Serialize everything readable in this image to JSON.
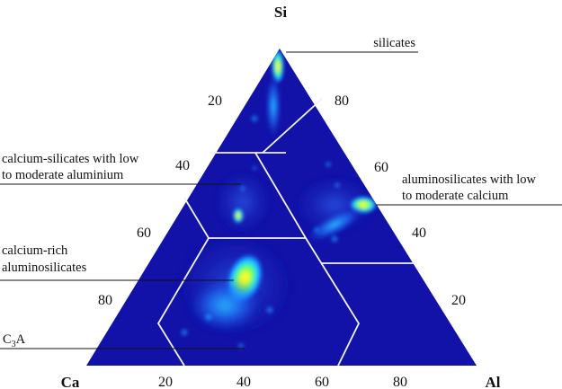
{
  "vertices": {
    "top": "Si",
    "bottom_left": "Ca",
    "bottom_right": "Al"
  },
  "ticks": {
    "left_edge": [
      "20",
      "40",
      "60",
      "80"
    ],
    "right_edge": [
      "80",
      "60",
      "40",
      "20"
    ],
    "bottom_edge": [
      "20",
      "40",
      "60",
      "80"
    ]
  },
  "regions": {
    "silicates": "silicates",
    "calcium_silicates_line1": "calcium-silicates with low",
    "calcium_silicates_line2": "to moderate aluminium",
    "aluminosilicates_line1": "aluminosilicates with low",
    "aluminosilicates_line2": "to moderate calcium",
    "calcium_rich_line1": "calcium-rich",
    "calcium_rich_line2": "aluminosilicates",
    "c3a_main": "C",
    "c3a_sub": "3",
    "c3a_tail": "A"
  },
  "colors": {
    "plot_background": "#1212a8",
    "boundary_lines": "#f2f2f2",
    "text": "#111111"
  }
}
